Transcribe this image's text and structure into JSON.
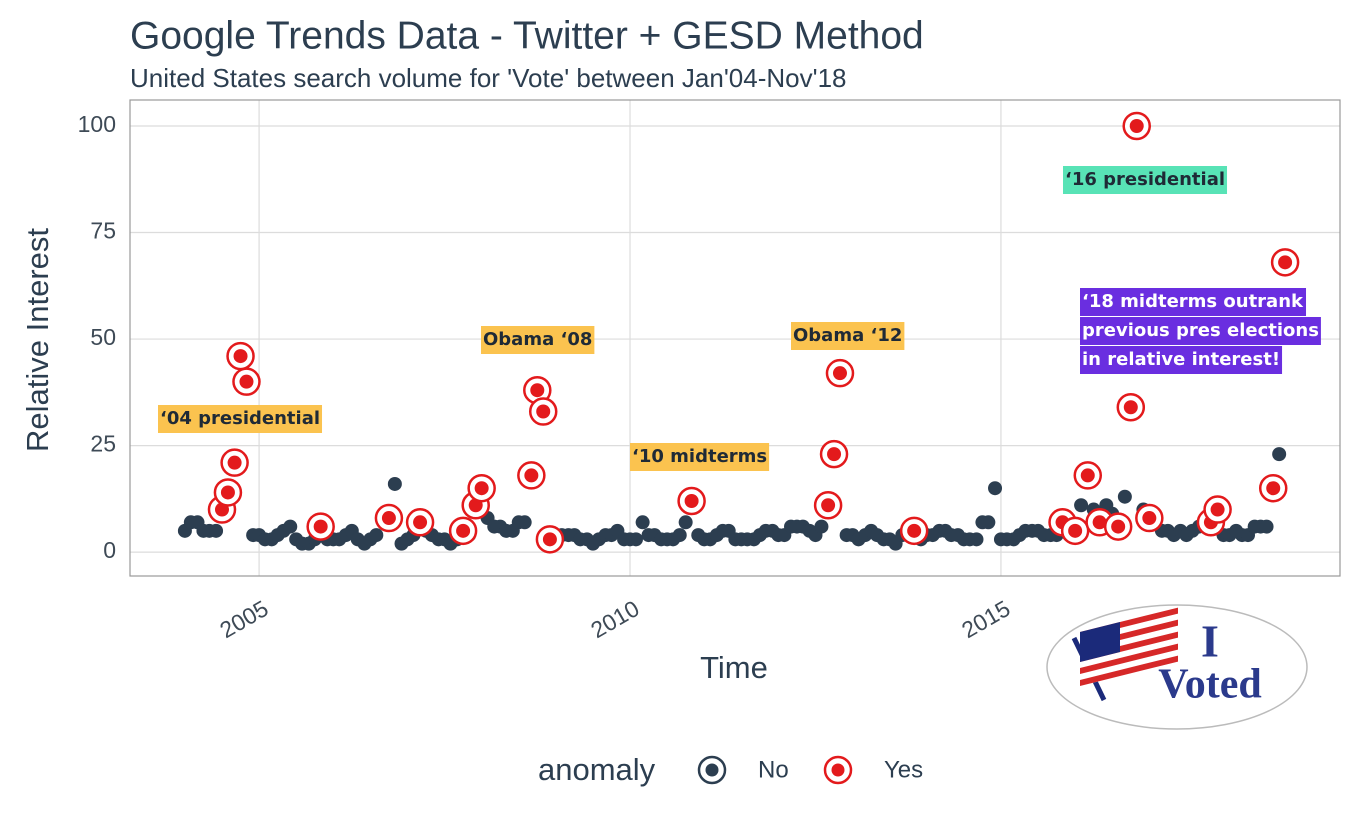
{
  "chart_data": {
    "type": "scatter",
    "title": "Google Trends Data - Twitter + GESD Method",
    "subtitle": "United States search volume for 'Vote' between Jan'04-Nov'18",
    "x_label": "Time",
    "y_label": "Relative Interest",
    "xlim": [
      2003.26,
      2019.57
    ],
    "xticks": [
      2005,
      2010,
      2015
    ],
    "ylim": [
      -5.6,
      106.1
    ],
    "yticks": [
      0,
      25,
      50,
      75,
      100
    ],
    "grid": true,
    "legend_title": "anomaly",
    "legend_position": "bottom",
    "series": [
      {
        "name": "No",
        "color": "#2c3e50",
        "x": [
          2004.0,
          2004.08,
          2004.17,
          2004.25,
          2004.33,
          2004.42,
          2004.92,
          2005.0,
          2005.08,
          2005.17,
          2005.25,
          2005.33,
          2005.42,
          2005.5,
          2005.58,
          2005.67,
          2005.75,
          2005.92,
          2006.0,
          2006.08,
          2006.17,
          2006.25,
          2006.33,
          2006.42,
          2006.5,
          2006.58,
          2006.83,
          2006.92,
          2007.0,
          2007.08,
          2007.25,
          2007.33,
          2007.42,
          2007.5,
          2007.58,
          2007.67,
          2007.83,
          2008.08,
          2008.17,
          2008.25,
          2008.33,
          2008.42,
          2008.5,
          2008.58,
          2009.0,
          2009.08,
          2009.17,
          2009.25,
          2009.33,
          2009.42,
          2009.5,
          2009.58,
          2009.67,
          2009.75,
          2009.83,
          2009.92,
          2010.0,
          2010.08,
          2010.17,
          2010.25,
          2010.33,
          2010.42,
          2010.5,
          2010.58,
          2010.67,
          2010.75,
          2010.92,
          2011.0,
          2011.08,
          2011.17,
          2011.25,
          2011.33,
          2011.42,
          2011.5,
          2011.58,
          2011.67,
          2011.75,
          2011.83,
          2011.92,
          2012.0,
          2012.08,
          2012.17,
          2012.25,
          2012.33,
          2012.42,
          2012.5,
          2012.58,
          2012.92,
          2013.0,
          2013.08,
          2013.17,
          2013.25,
          2013.33,
          2013.42,
          2013.5,
          2013.58,
          2013.67,
          2013.75,
          2013.92,
          2014.0,
          2014.08,
          2014.17,
          2014.25,
          2014.33,
          2014.42,
          2014.5,
          2014.58,
          2014.67,
          2014.75,
          2014.83,
          2014.92,
          2015.0,
          2015.08,
          2015.17,
          2015.25,
          2015.33,
          2015.42,
          2015.5,
          2015.58,
          2015.67,
          2015.75,
          2015.92,
          2016.08,
          2016.25,
          2016.42,
          2016.5,
          2016.67,
          2016.92,
          2017.08,
          2017.17,
          2017.25,
          2017.33,
          2017.42,
          2017.5,
          2017.58,
          2017.67,
          2018.0,
          2018.08,
          2018.17,
          2018.25,
          2018.33,
          2018.42,
          2018.5,
          2018.58,
          2018.75
        ],
        "values": [
          5,
          7,
          7,
          5,
          5,
          5,
          4,
          4,
          3,
          3,
          4,
          5,
          6,
          3,
          2,
          2,
          3,
          3,
          3,
          3,
          4,
          5,
          3,
          2,
          3,
          4,
          16,
          2,
          3,
          4,
          5,
          4,
          3,
          3,
          2,
          3,
          4,
          8,
          6,
          6,
          5,
          5,
          7,
          7,
          4,
          4,
          4,
          4,
          3,
          3,
          2,
          3,
          4,
          4,
          5,
          3,
          3,
          3,
          7,
          4,
          4,
          3,
          3,
          3,
          4,
          7,
          4,
          3,
          3,
          4,
          5,
          5,
          3,
          3,
          3,
          3,
          4,
          5,
          5,
          4,
          4,
          6,
          6,
          6,
          5,
          4,
          6,
          4,
          4,
          3,
          4,
          5,
          4,
          3,
          3,
          2,
          4,
          4,
          3,
          4,
          4,
          5,
          5,
          4,
          4,
          3,
          3,
          3,
          7,
          7,
          15,
          3,
          3,
          3,
          4,
          5,
          5,
          5,
          4,
          4,
          4,
          4,
          11,
          10,
          11,
          9,
          13,
          10,
          7,
          5,
          5,
          4,
          5,
          4,
          5,
          6,
          4,
          4,
          5,
          4,
          4,
          6,
          6,
          6,
          23
        ]
      },
      {
        "name": "Yes",
        "color": "#e31a1c",
        "x": [
          2004.5,
          2004.58,
          2004.67,
          2004.75,
          2004.83,
          2005.83,
          2006.75,
          2007.17,
          2007.75,
          2007.92,
          2008.0,
          2008.67,
          2008.75,
          2008.83,
          2008.92,
          2010.83,
          2012.67,
          2012.75,
          2012.83,
          2013.83,
          2015.83,
          2016.0,
          2016.17,
          2016.33,
          2016.58,
          2016.75,
          2016.83,
          2017.0,
          2017.83,
          2017.92,
          2018.67,
          2018.83
        ],
        "values": [
          10,
          14,
          21,
          46,
          40,
          6,
          8,
          7,
          5,
          11,
          15,
          18,
          38,
          33,
          3,
          12,
          11,
          23,
          42,
          5,
          7,
          5,
          18,
          7,
          6,
          34,
          100,
          8,
          7,
          10,
          15,
          68
        ]
      }
    ],
    "annotations": [
      {
        "lines": [
          "‘04 presidential"
        ],
        "background": "#fbc34f",
        "color": "#1f2a36"
      },
      {
        "lines": [
          "Obama ‘08"
        ],
        "background": "#fbc34f",
        "color": "#1f2a36"
      },
      {
        "lines": [
          "‘10 midterms"
        ],
        "background": "#fbc34f",
        "color": "#1f2a36"
      },
      {
        "lines": [
          "Obama ‘12"
        ],
        "background": "#fbc34f",
        "color": "#1f2a36"
      },
      {
        "lines": [
          "‘16 presidential"
        ],
        "background": "#58e3b6",
        "color": "#1f2a36"
      },
      {
        "lines": [
          "‘18 midterms outrank",
          "previous pres elections",
          "in relative interest!"
        ],
        "background": "#6a2ee0",
        "color": "#ffffff"
      }
    ],
    "sticker": {
      "line1": "I",
      "line2": "Voted"
    }
  }
}
